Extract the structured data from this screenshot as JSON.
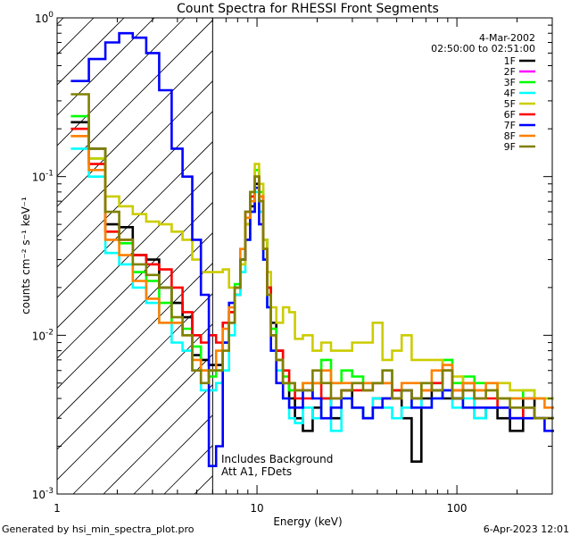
{
  "chart_data": {
    "type": "line",
    "title": "Count Spectra for RHESSI Front Segments",
    "xlabel": "Energy (keV)",
    "ylabel": "counts cm⁻² s⁻¹ keV⁻¹",
    "x_scale": "log",
    "y_scale": "log",
    "xlim": [
      1,
      300
    ],
    "ylim": [
      0.001,
      1
    ],
    "x_ticks": [
      {
        "value": 1,
        "label": "1"
      },
      {
        "value": 10,
        "label": "10"
      },
      {
        "value": 100,
        "label": "100"
      }
    ],
    "y_ticks": [
      {
        "value": 0.001,
        "base": "10",
        "exp": "-3"
      },
      {
        "value": 0.01,
        "base": "10",
        "exp": "-2"
      },
      {
        "value": 0.1,
        "base": "10",
        "exp": "-1"
      },
      {
        "value": 1,
        "base": "10",
        "exp": "0"
      }
    ],
    "hatch_region": {
      "x_min": 1,
      "x_max": 6
    },
    "legend_placement": "top-right",
    "legend_header": {
      "date": "4-Mar-2002",
      "time_range": "02:50:00 to 02:51:00"
    },
    "annotations": [
      "Includes Background",
      "Att A1, FDets"
    ],
    "footer": {
      "left": "Generated by hsi_min_spectra_plot.pro",
      "right": "6-Apr-2023 12:01"
    },
    "common_x": [
      1.3,
      1.6,
      1.9,
      2.2,
      2.6,
      3.0,
      3.5,
      4.0,
      4.5,
      5.0,
      5.5,
      6.0,
      6.5,
      7.0,
      7.5,
      8.0,
      8.5,
      9.0,
      9.5,
      10.0,
      10.5,
      11.0,
      11.5,
      12.0,
      13.0,
      14.0,
      15.0,
      16.0,
      18.0,
      20.0,
      22.0,
      25.0,
      28.0,
      32.0,
      36.0,
      40.0,
      45.0,
      50.0,
      56.0,
      63.0,
      70.0,
      80.0,
      90.0,
      100.0,
      115.0,
      130.0,
      150.0,
      170.0,
      200.0,
      230.0,
      260.0,
      290.0
    ],
    "series": [
      {
        "name": "1F",
        "color": "#000000",
        "values": [
          0.22,
          0.15,
          0.05,
          0.048,
          0.032,
          0.03,
          0.02,
          0.016,
          0.013,
          0.0075,
          0.007,
          0.0065,
          0.0065,
          0.009,
          0.012,
          0.018,
          0.03,
          0.05,
          0.065,
          0.09,
          0.07,
          0.04,
          0.02,
          0.012,
          0.008,
          0.005,
          0.004,
          0.003,
          0.0025,
          0.0035,
          0.004,
          0.003,
          0.0045,
          0.0035,
          0.003,
          0.004,
          0.004,
          0.0045,
          0.003,
          0.0016,
          0.004,
          0.0045,
          0.004,
          0.004,
          0.005,
          0.003,
          0.0035,
          0.003,
          0.0025,
          0.004,
          0.003,
          0.003
        ]
      },
      {
        "name": "2F",
        "color": "#ff00ff",
        "values": [
          null,
          null,
          null,
          null,
          null,
          null,
          null,
          null,
          null,
          null,
          null,
          null,
          null,
          null,
          null,
          null,
          null,
          null,
          null,
          null,
          null,
          null,
          null,
          null,
          null,
          null,
          null,
          null,
          null,
          null,
          null,
          null,
          null,
          null,
          null,
          null,
          null,
          null,
          null,
          null,
          null,
          null,
          null,
          null,
          null,
          null,
          null,
          null,
          null,
          null,
          null,
          null
        ]
      },
      {
        "name": "3F",
        "color": "#00ff00",
        "values": [
          0.24,
          0.13,
          0.045,
          0.038,
          0.025,
          0.022,
          0.016,
          0.012,
          0.011,
          0.0085,
          0.006,
          0.0055,
          0.006,
          0.009,
          0.014,
          0.021,
          0.03,
          0.05,
          0.075,
          0.11,
          0.08,
          0.04,
          0.02,
          0.011,
          0.007,
          0.0055,
          0.0045,
          0.0045,
          0.005,
          0.005,
          0.007,
          0.005,
          0.006,
          0.0055,
          0.005,
          0.005,
          0.006,
          0.0045,
          0.0045,
          0.004,
          0.005,
          0.005,
          0.007,
          0.005,
          0.0055,
          0.005,
          0.005,
          0.004,
          0.004,
          0.0045,
          0.004,
          0.004
        ]
      },
      {
        "name": "4F",
        "color": "#00ffff",
        "values": [
          0.15,
          0.1,
          0.033,
          0.028,
          0.02,
          0.016,
          0.012,
          0.009,
          0.008,
          0.006,
          0.0045,
          0.0045,
          0.005,
          0.006,
          0.01,
          0.018,
          0.025,
          0.04,
          0.06,
          0.08,
          0.06,
          0.03,
          0.015,
          0.008,
          0.006,
          0.004,
          0.003,
          0.0028,
          0.0035,
          0.003,
          0.004,
          0.0025,
          0.004,
          0.0035,
          0.003,
          0.004,
          0.0035,
          0.003,
          0.0035,
          0.004,
          0.0035,
          0.004,
          0.0045,
          0.0035,
          0.004,
          0.003,
          0.0035,
          0.0035,
          0.003,
          0.003,
          0.003,
          0.003
        ]
      },
      {
        "name": "5F",
        "color": "#cccc00",
        "values": [
          0.18,
          0.13,
          0.075,
          0.065,
          0.058,
          0.052,
          0.05,
          0.045,
          0.04,
          0.03,
          0.025,
          0.025,
          0.025,
          0.026,
          0.02,
          0.02,
          0.028,
          0.05,
          0.08,
          0.12,
          0.09,
          0.04,
          0.025,
          0.015,
          0.012,
          0.015,
          0.014,
          0.0095,
          0.01,
          0.008,
          0.009,
          0.008,
          0.008,
          0.009,
          0.009,
          0.012,
          0.007,
          0.008,
          0.01,
          0.007,
          0.007,
          0.007,
          0.006,
          0.0055,
          0.005,
          0.0045,
          0.0045,
          0.005,
          0.0045,
          0.0045,
          0.004,
          0.004
        ]
      },
      {
        "name": "6F",
        "color": "#ff0000",
        "values": [
          0.2,
          0.12,
          0.045,
          0.04,
          0.032,
          0.028,
          0.026,
          0.02,
          0.014,
          0.01,
          0.009,
          0.01,
          0.009,
          0.012,
          0.014,
          0.02,
          0.03,
          0.06,
          0.075,
          0.1,
          0.075,
          0.035,
          0.02,
          0.01,
          0.008,
          0.006,
          0.005,
          0.004,
          0.004,
          0.005,
          0.004,
          0.004,
          0.0045,
          0.0045,
          0.0045,
          0.005,
          0.005,
          0.0045,
          0.0045,
          0.004,
          0.0045,
          0.005,
          0.006,
          0.0045,
          0.0045,
          0.004,
          0.004,
          0.0035,
          0.003,
          0.0035,
          0.003,
          0.003
        ]
      },
      {
        "name": "7F",
        "color": "#0000ff",
        "values": [
          0.4,
          0.55,
          0.7,
          0.8,
          0.75,
          0.6,
          0.35,
          0.15,
          0.1,
          0.04,
          0.018,
          0.0015,
          0.002,
          0.009,
          0.016,
          0.02,
          0.03,
          0.04,
          0.06,
          0.085,
          0.05,
          0.03,
          0.015,
          0.008,
          0.005,
          0.004,
          0.0035,
          0.0035,
          0.0045,
          0.004,
          0.003,
          0.0035,
          0.004,
          0.0035,
          0.003,
          0.0035,
          0.004,
          0.004,
          0.0045,
          0.0035,
          0.0035,
          0.004,
          0.0045,
          0.004,
          0.0035,
          0.0035,
          0.0035,
          0.0035,
          0.003,
          0.003,
          0.003,
          0.0025
        ]
      },
      {
        "name": "8F",
        "color": "#ff8000",
        "values": [
          0.18,
          0.11,
          0.04,
          0.032,
          0.022,
          0.017,
          0.012,
          0.012,
          0.01,
          0.007,
          0.006,
          0.006,
          0.008,
          0.011,
          0.015,
          0.02,
          0.035,
          0.055,
          0.07,
          0.1,
          0.075,
          0.035,
          0.018,
          0.01,
          0.007,
          0.005,
          0.005,
          0.0045,
          0.005,
          0.005,
          0.006,
          0.005,
          0.005,
          0.005,
          0.005,
          0.005,
          0.005,
          0.004,
          0.005,
          0.005,
          0.0045,
          0.006,
          0.0065,
          0.0045,
          0.005,
          0.0045,
          0.005,
          0.004,
          0.004,
          0.004,
          0.004,
          0.0035
        ]
      },
      {
        "name": "9F",
        "color": "#808000",
        "values": [
          0.33,
          0.15,
          0.06,
          0.04,
          0.028,
          0.024,
          0.02,
          0.013,
          0.01,
          0.006,
          0.005,
          0.006,
          0.006,
          0.008,
          0.012,
          0.02,
          0.03,
          0.06,
          0.08,
          0.1,
          0.07,
          0.035,
          0.018,
          0.01,
          0.007,
          0.005,
          0.005,
          0.0045,
          0.0045,
          0.006,
          0.005,
          0.004,
          0.0045,
          0.005,
          0.0045,
          0.005,
          0.006,
          0.004,
          0.0045,
          0.004,
          0.005,
          0.0045,
          0.006,
          0.004,
          0.0045,
          0.004,
          0.0045,
          0.004,
          0.0035,
          0.0035,
          0.003,
          0.003
        ]
      }
    ]
  }
}
